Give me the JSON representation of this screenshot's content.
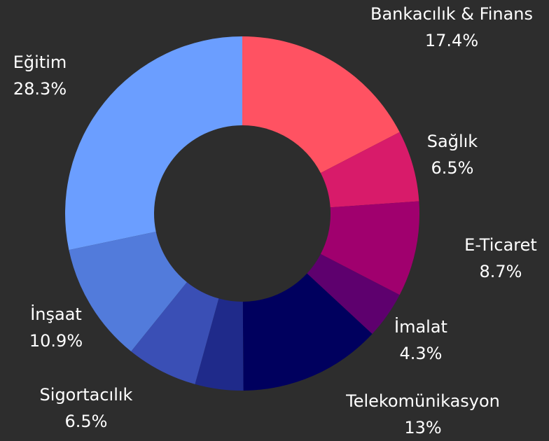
{
  "chart_data": {
    "type": "donut",
    "categories": [
      "Bankacılık & Finans",
      "Sağlık",
      "E-Ticaret",
      "İmalat",
      "Telekomünikasyon",
      null,
      "Sigortacılık",
      "İnşaat",
      "Eğitim"
    ],
    "values": [
      17.4,
      6.5,
      8.7,
      4.3,
      13,
      4.4,
      6.5,
      10.9,
      28.3
    ],
    "value_labels": [
      "17.4%",
      "6.5%",
      "8.7%",
      "4.3%",
      "13%",
      null,
      "6.5%",
      "10.9%",
      "28.3%"
    ],
    "colors": [
      "#ff5262",
      "#d81b6a",
      "#a0006e",
      "#5e006e",
      "#00005e",
      "#1f2a8a",
      "#3a4fb5",
      "#527bdb",
      "#6b9eff"
    ]
  }
}
